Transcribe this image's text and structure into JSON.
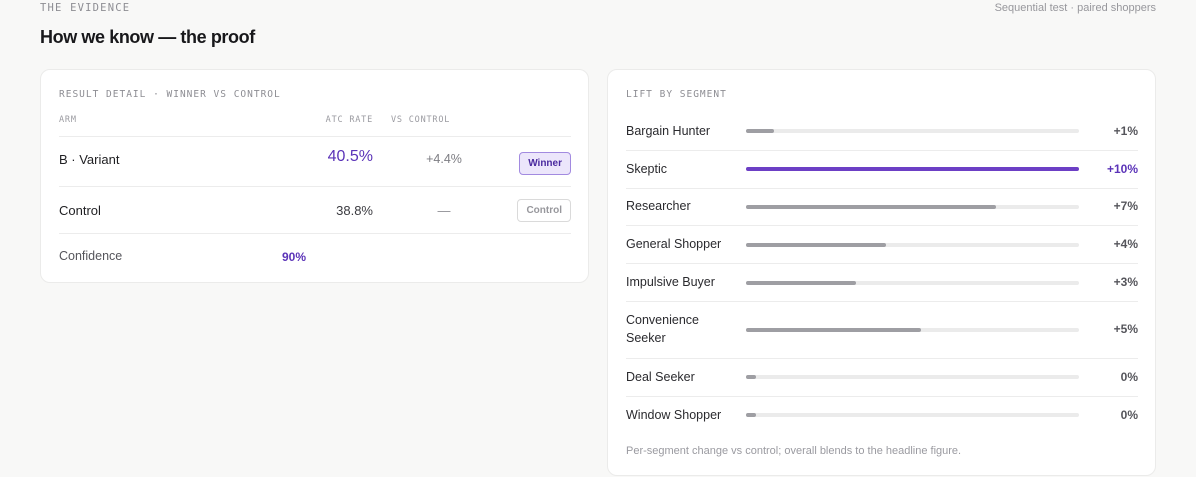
{
  "header": {
    "eyebrow": "THE EVIDENCE",
    "meta": "Sequential test · paired shoppers",
    "title": "How we know — the proof"
  },
  "result": {
    "label": "RESULT DETAIL · WINNER VS CONTROL",
    "columns": {
      "arm": "ARM",
      "rate": "ATC RATE",
      "vs": "VS CONTROL"
    },
    "rows": [
      {
        "arm": "B · Variant",
        "rate": "40.5%",
        "vs": "+4.4%",
        "badge": "Winner"
      },
      {
        "arm": "Control",
        "rate": "38.8%",
        "vs": "—",
        "badge": "Control"
      }
    ],
    "confidence_label": "Confidence",
    "confidence_value": "90%"
  },
  "segments": {
    "label": "LIFT BY SEGMENT",
    "items": [
      {
        "name": "Bargain Hunter",
        "lift": "+1%",
        "level": 0.085,
        "highlight": false
      },
      {
        "name": "Skeptic",
        "lift": "+10%",
        "level": 1.0,
        "highlight": true
      },
      {
        "name": "Researcher",
        "lift": "+7%",
        "level": 0.75,
        "highlight": false
      },
      {
        "name": "General Shopper",
        "lift": "+4%",
        "level": 0.42,
        "highlight": false
      },
      {
        "name": "Impulsive Buyer",
        "lift": "+3%",
        "level": 0.33,
        "highlight": false
      },
      {
        "name": "Convenience Seeker",
        "lift": "+5%",
        "level": 0.525,
        "highlight": false
      },
      {
        "name": "Deal Seeker",
        "lift": "0%",
        "level": 0.03,
        "highlight": false
      },
      {
        "name": "Window Shopper",
        "lift": "0%",
        "level": 0.03,
        "highlight": false
      }
    ],
    "footnote": "Per-segment change vs control; overall blends to the headline figure."
  },
  "colors": {
    "accent": "#6c3fc5",
    "bar_neutral": "#9e9ea3",
    "track": "#ebebeb"
  }
}
